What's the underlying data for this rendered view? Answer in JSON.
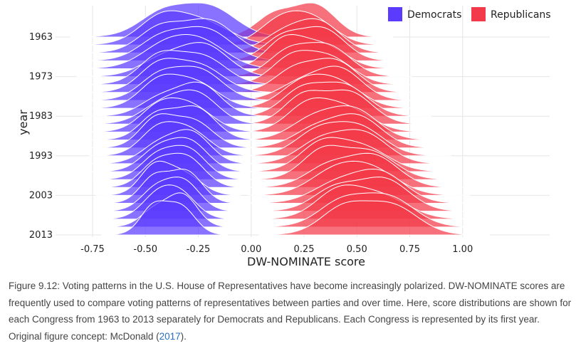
{
  "chart_data": {
    "type": "ridgeline",
    "xlabel": "DW-NOMINATE score",
    "ylabel": "year",
    "xlim": [
      -0.85,
      1.4
    ],
    "x_ticks": [
      -0.75,
      -0.5,
      -0.25,
      0.0,
      0.25,
      0.5,
      0.75,
      1.0
    ],
    "x_tick_labels": [
      "-0.75",
      "-0.50",
      "-0.25",
      "0.00",
      "0.25",
      "0.50",
      "0.75",
      "1.00"
    ],
    "y_ticks": [
      1963,
      1973,
      1983,
      1993,
      2003,
      2013
    ],
    "y_tick_labels": [
      "1963",
      "1973",
      "1983",
      "1993",
      "2003",
      "2013"
    ],
    "years": [
      1963,
      1965,
      1967,
      1969,
      1971,
      1973,
      1975,
      1977,
      1979,
      1981,
      1983,
      1985,
      1987,
      1989,
      1991,
      1993,
      1995,
      1997,
      1999,
      2001,
      2003,
      2005,
      2007,
      2009,
      2011,
      2013
    ],
    "grid": true,
    "legend_position": "top-right",
    "series": [
      {
        "name": "Democrats",
        "color": "#5b3cff",
        "peak_start": -0.31,
        "peak_end": -0.4,
        "spread_start": 0.16,
        "spread_end": 0.09
      },
      {
        "name": "Republicans",
        "color": "#f23a4a",
        "peak_start": 0.2,
        "peak_end": 0.55,
        "spread_start": 0.13,
        "spread_end": 0.16
      }
    ]
  },
  "caption": {
    "text": "Figure 9.12: Voting patterns in the U.S. House of Representatives have become increasingly polarized. DW-NOMINATE scores are frequently used to compare voting patterns of representatives between parties and over time. Here, score distributions are shown for each Congress from 1963 to 2013 separately for Democrats and Republicans. Each Congress is represented by its first year. Original figure concept: McDonald (",
    "link_text": "2017",
    "tail": ")."
  }
}
